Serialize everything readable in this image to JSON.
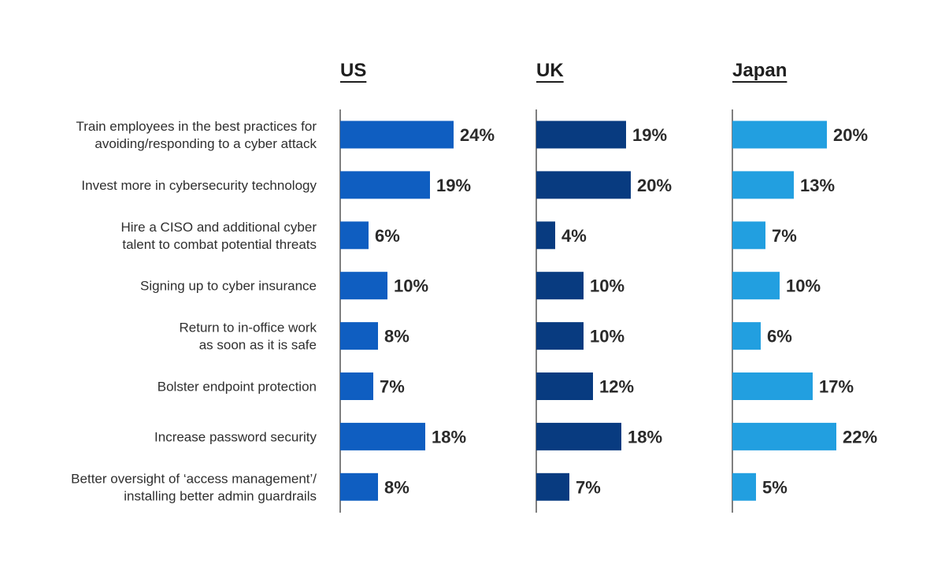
{
  "chart_data": {
    "type": "bar",
    "orientation": "horizontal",
    "categories": [
      [
        "Train employees in the best practices for",
        "avoiding/responding to a cyber attack"
      ],
      [
        "Invest more in cybersecurity technology"
      ],
      [
        "Hire a CISO and additional cyber",
        "talent to combat potential threats"
      ],
      [
        "Signing up to cyber insurance"
      ],
      [
        "Return to in-office work",
        "as soon as it is safe"
      ],
      [
        "Bolster endpoint protection"
      ],
      [
        "Increase password security"
      ],
      [
        "Better oversight of ‘access management’/",
        "installing better admin guardrails"
      ]
    ],
    "series": [
      {
        "name": "US",
        "color": "#0f5ec1",
        "values": [
          24,
          19,
          6,
          10,
          8,
          7,
          18,
          8
        ],
        "labels": [
          "24%",
          "19%",
          "6%",
          "10%",
          "8%",
          "7%",
          "18%",
          "8%"
        ]
      },
      {
        "name": "UK",
        "color": "#083b80",
        "values": [
          19,
          20,
          4,
          10,
          10,
          12,
          18,
          7
        ],
        "labels": [
          "19%",
          "20%",
          "4%",
          "10%",
          "10%",
          "12%",
          "18%",
          "7%"
        ]
      },
      {
        "name": "Japan",
        "color": "#229fe0",
        "values": [
          20,
          13,
          7,
          10,
          6,
          17,
          22,
          5
        ],
        "labels": [
          "20%",
          "13%",
          "7%",
          "10%",
          "6%",
          "17%",
          "22%",
          "5%"
        ]
      }
    ],
    "xlim": [
      0,
      24
    ],
    "grid": false,
    "legend": "none"
  }
}
